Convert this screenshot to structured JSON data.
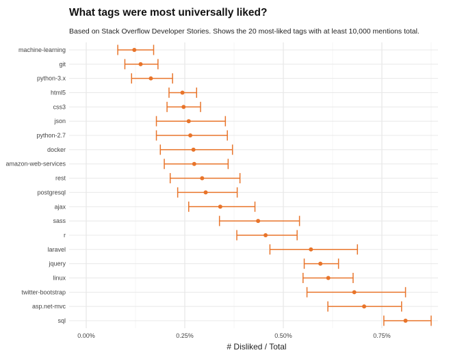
{
  "chart_data": {
    "type": "scatter",
    "title": "What tags were most universally liked?",
    "subtitle": "Based on Stack Overflow Developer Stories. Shows the 20 most-liked tags with at least 10,000 mentions total.",
    "xlabel": "# Disliked / Total",
    "ylabel": "",
    "xlim": [
      -0.0005,
      0.00905
    ],
    "xticks": [
      0,
      0.0025,
      0.005,
      0.0075
    ],
    "xtick_labels": [
      "0.00%",
      "0.25%",
      "0.50%",
      "0.75%"
    ],
    "grid": true,
    "color": "#e8742a",
    "categories": [
      "machine-learning",
      "git",
      "python-3.x",
      "html5",
      "css3",
      "json",
      "python-2.7",
      "docker",
      "amazon-web-services",
      "rest",
      "postgresql",
      "ajax",
      "sass",
      "r",
      "laravel",
      "jquery",
      "linux",
      "twitter-bootstrap",
      "asp.net-mvc",
      "sql"
    ],
    "values": [
      0.00122,
      0.00138,
      0.00164,
      0.00244,
      0.00247,
      0.0026,
      0.00264,
      0.00272,
      0.00274,
      0.00294,
      0.00303,
      0.0034,
      0.00436,
      0.00455,
      0.0057,
      0.00594,
      0.00614,
      0.0068,
      0.00705,
      0.0081
    ],
    "low": [
      0.0008,
      0.00098,
      0.00115,
      0.0021,
      0.00205,
      0.00178,
      0.00178,
      0.00188,
      0.00198,
      0.00213,
      0.00232,
      0.0026,
      0.00338,
      0.00382,
      0.00466,
      0.00553,
      0.0055,
      0.0056,
      0.00613,
      0.00755
    ],
    "high": [
      0.00171,
      0.00182,
      0.00219,
      0.0028,
      0.0029,
      0.00353,
      0.00358,
      0.00371,
      0.0036,
      0.0039,
      0.00383,
      0.00428,
      0.00541,
      0.00535,
      0.00688,
      0.0064,
      0.00677,
      0.0081,
      0.008,
      0.00875
    ]
  }
}
